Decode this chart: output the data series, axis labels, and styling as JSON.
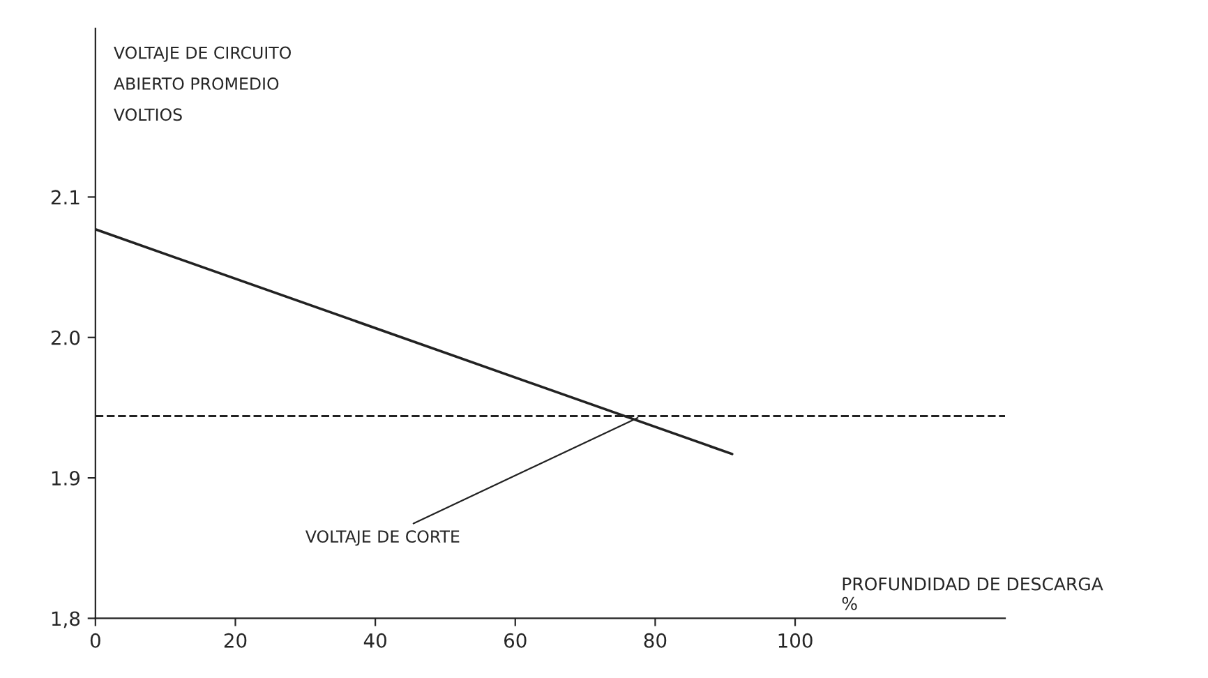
{
  "chart_data": {
    "type": "line",
    "xlabel": "PROFUNDIDAD DE DESCARGA\n%",
    "ylabel": "VOLTAJE DE CIRCUITO\nABIERTO PROMEDIO\nVOLTIOS",
    "x": [
      0,
      91
    ],
    "series": [
      {
        "color": "#222222",
        "values": [
          2.077,
          1.917
        ]
      }
    ],
    "xlim": [
      0,
      130
    ],
    "ylim": [
      1.8,
      2.22
    ],
    "xticks": [
      0,
      20,
      40,
      60,
      80,
      100
    ],
    "yticks": [
      {
        "value": 1.8,
        "label": "1,8"
      },
      {
        "value": 1.9,
        "label": "1.9"
      },
      {
        "value": 2.0,
        "label": "2.0"
      },
      {
        "value": 2.1,
        "label": "2.1"
      }
    ],
    "ref_lines": [
      {
        "axis": "y",
        "value": 1.944,
        "color": "#222222",
        "line_style": "dashed"
      }
    ],
    "annotations": [
      {
        "text": "VOLTAJE DE CORTE",
        "x": 78,
        "y": 1.944
      }
    ],
    "grid": false,
    "legend": false,
    "marker": "none",
    "line_style": "solid"
  }
}
